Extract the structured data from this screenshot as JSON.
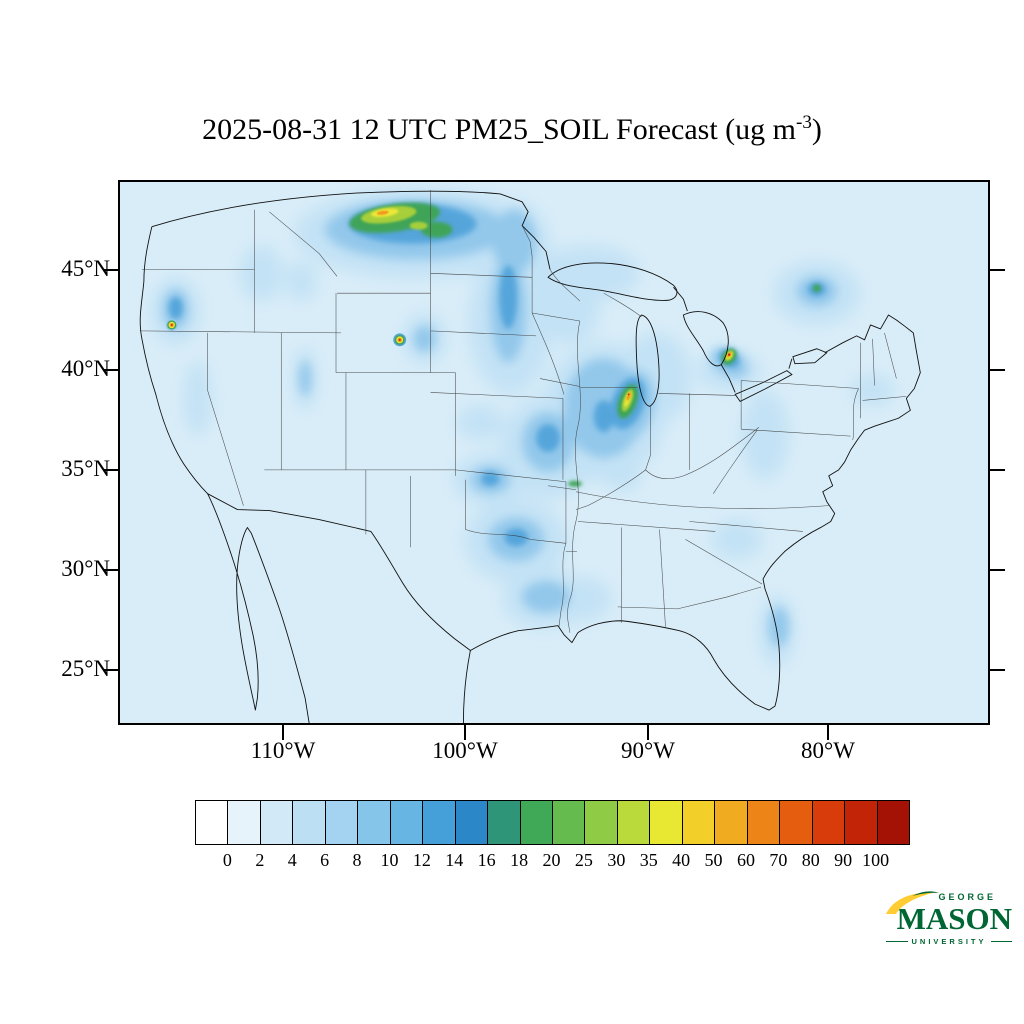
{
  "title": {
    "main": "2025-08-31 12 UTC PM25_SOIL Forecast (ug m",
    "superscript": "-3",
    "close": ")"
  },
  "axes": {
    "lat_ticks": [
      "45°N",
      "40°N",
      "35°N",
      "30°N",
      "25°N"
    ],
    "lon_ticks": [
      "110°W",
      "100°W",
      "90°W",
      "80°W"
    ]
  },
  "colorbar": {
    "labels": [
      "0",
      "2",
      "4",
      "6",
      "8",
      "10",
      "12",
      "14",
      "16",
      "18",
      "20",
      "25",
      "30",
      "35",
      "40",
      "50",
      "60",
      "70",
      "80",
      "90",
      "100"
    ],
    "colors": [
      "#ffffff",
      "#e7f3fb",
      "#d2e9f8",
      "#bddff4",
      "#a3d3f0",
      "#86c5ea",
      "#66b5e3",
      "#459fd8",
      "#2b87c8",
      "#2f9579",
      "#3fa957",
      "#66bb4e",
      "#8fcb45",
      "#bada3c",
      "#e8e833",
      "#f3cf2a",
      "#f0ab20",
      "#ec8418",
      "#e55e10",
      "#d93c0b",
      "#c22407",
      "#a41205"
    ]
  },
  "logo": {
    "line1": "GEORGE",
    "line2": "MASON",
    "line3": "UNIVERSITY",
    "green": "#006633",
    "gold": "#ffcc33"
  },
  "chart_data": {
    "type": "heatmap",
    "title": "2025-08-31 12 UTC PM25_SOIL Forecast (ug m-3)",
    "variable": "PM25_SOIL",
    "units": "ug m-3",
    "valid_time": "2025-08-31 12 UTC",
    "region": "Continental United States and southern Canada / northern Mexico",
    "lat_ticks_deg_n": [
      45,
      40,
      35,
      30,
      25
    ],
    "lon_ticks_deg_w": [
      110,
      100,
      90,
      80
    ],
    "levels": [
      0,
      2,
      4,
      6,
      8,
      10,
      12,
      14,
      16,
      18,
      20,
      25,
      30,
      35,
      40,
      50,
      60,
      70,
      80,
      90,
      100
    ],
    "palette": [
      "#ffffff",
      "#e7f3fb",
      "#d2e9f8",
      "#bddff4",
      "#a3d3f0",
      "#86c5ea",
      "#66b5e3",
      "#459fd8",
      "#2b87c8",
      "#2f9579",
      "#3fa957",
      "#66bb4e",
      "#8fcb45",
      "#bada3c",
      "#e8e833",
      "#f3cf2a",
      "#f0ab20",
      "#ec8418",
      "#e55e10",
      "#d93c0b",
      "#c22407",
      "#a41205"
    ],
    "background_field": "0-2 ug m-3 light blue over most of the domain",
    "hotspots": [
      {
        "location": "Montana / North Dakota near US-Canada border",
        "approx_value": "16-30"
      },
      {
        "location": "Central Illinois west of Lake Michigan",
        "approx_value": "25-50"
      },
      {
        "location": "Western Lake Erie / southern Ontario",
        "approx_value": "40-70"
      },
      {
        "location": "Southwestern Oregon (small spot)",
        "approx_value": "40-60"
      },
      {
        "location": "Southeast Wyoming / northern Colorado (small spot)",
        "approx_value": "40-60"
      },
      {
        "location": "Central plains (Kansas-Missouri)",
        "approx_value": "4-10"
      },
      {
        "location": "Central Texas and western Gulf coast",
        "approx_value": "4-8"
      },
      {
        "location": "Upstate New York / Vermont",
        "approx_value": "6-16"
      }
    ],
    "legend_position": "bottom horizontal colorbar",
    "grid": false
  }
}
